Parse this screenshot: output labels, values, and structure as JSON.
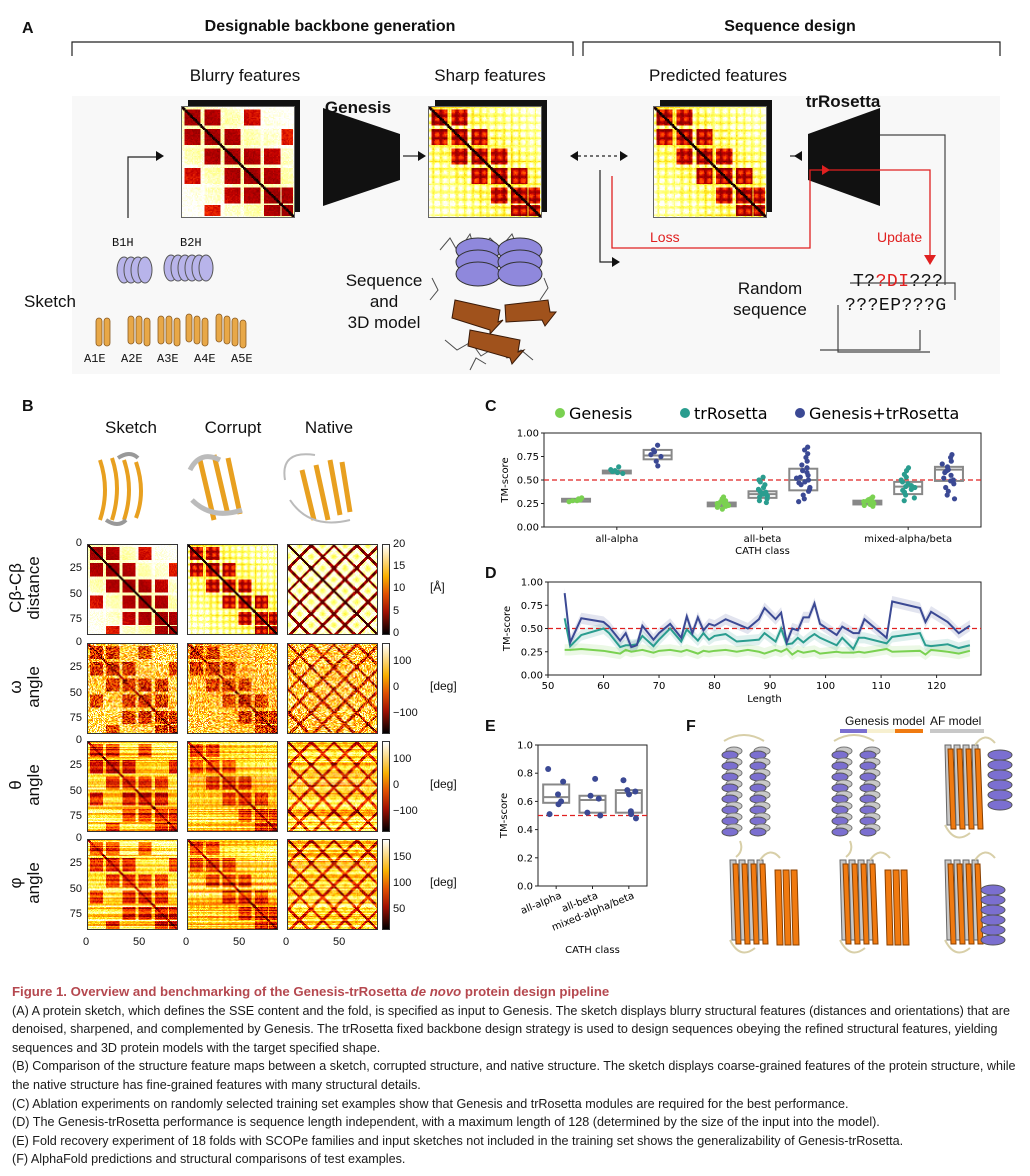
{
  "panel_a": {
    "label": "A",
    "section_left": "Designable backbone generation",
    "section_right": "Sequence design",
    "blurry": "Blurry features",
    "sharp": "Sharp features",
    "predicted": "Predicted features",
    "genesis": "Genesis",
    "trrosetta": "trRosetta",
    "sketch": "Sketch",
    "sketch_tags_top": [
      "B1H",
      "B2H"
    ],
    "sketch_tags_bottom": [
      "A1E",
      "A2E",
      "A3E",
      "A4E",
      "A5E"
    ],
    "model_label": [
      "Sequence",
      "and",
      "3D model"
    ],
    "loss": "Loss",
    "update": "Update",
    "random_seq_label": [
      "Random",
      "sequence"
    ],
    "seq_line1": [
      {
        "t": "T?",
        "c": "#111111"
      },
      {
        "t": "?DI",
        "c": "#e02020"
      },
      {
        "t": "???",
        "c": "#111111"
      }
    ],
    "seq_line2": "???EP???G",
    "accent_red": "#e02020"
  },
  "panel_b": {
    "label": "B",
    "columns": [
      "Sketch",
      "Corrupt",
      "Native"
    ],
    "rows": [
      {
        "label1": "Cβ-Cβ",
        "label2": "distance",
        "unit": "[Å]",
        "cbar_ticks": [
          "20",
          "15",
          "10",
          "5",
          "0"
        ]
      },
      {
        "label1": "ω",
        "label2": "angle",
        "unit": "[deg]",
        "cbar_ticks": [
          "100",
          "0",
          "−100"
        ]
      },
      {
        "label1": "θ",
        "label2": "angle",
        "unit": "[deg]",
        "cbar_ticks": [
          "100",
          "0",
          "−100"
        ]
      },
      {
        "label1": "φ",
        "label2": "angle",
        "unit": "[deg]",
        "cbar_ticks": [
          "150",
          "100",
          "50"
        ]
      }
    ],
    "y_ticks": [
      "0",
      "25",
      "50",
      "75"
    ],
    "x_ticks": [
      "0",
      "50"
    ],
    "colormap": "afmhot"
  },
  "chart_data": [
    {
      "panel": "C",
      "type": "box+strip",
      "xlabel": "CATH class",
      "ylabel": "TM-score",
      "ylim": [
        0,
        1
      ],
      "y_ticks": [
        "0.00",
        "0.25",
        "0.50",
        "0.75",
        "1.00"
      ],
      "threshold": 0.5,
      "legend_placement": "top",
      "categories": [
        "all-alpha",
        "all-beta",
        "mixed-alpha/beta"
      ],
      "series": [
        {
          "name": "Genesis",
          "color": "#7ad151",
          "boxes": [
            {
              "q1": 0.27,
              "median": 0.29,
              "q3": 0.3
            },
            {
              "q1": 0.22,
              "median": 0.24,
              "q3": 0.26
            },
            {
              "q1": 0.24,
              "median": 0.26,
              "q3": 0.28
            }
          ],
          "points": [
            [
              0.27,
              0.28,
              0.29,
              0.3,
              0.31,
              0.28
            ],
            [
              0.19,
              0.21,
              0.22,
              0.23,
              0.24,
              0.25,
              0.26,
              0.27,
              0.28,
              0.3,
              0.32,
              0.23,
              0.25,
              0.24
            ],
            [
              0.22,
              0.23,
              0.24,
              0.25,
              0.26,
              0.27,
              0.28,
              0.29,
              0.3,
              0.32,
              0.25,
              0.27
            ]
          ]
        },
        {
          "name": "trRosetta",
          "color": "#2a9d8f",
          "boxes": [
            {
              "q1": 0.57,
              "median": 0.58,
              "q3": 0.6
            },
            {
              "q1": 0.31,
              "median": 0.35,
              "q3": 0.38
            },
            {
              "q1": 0.35,
              "median": 0.43,
              "q3": 0.48
            }
          ],
          "points": [
            [
              0.57,
              0.58,
              0.59,
              0.6,
              0.61,
              0.64
            ],
            [
              0.26,
              0.28,
              0.3,
              0.32,
              0.34,
              0.35,
              0.36,
              0.38,
              0.4,
              0.42,
              0.45,
              0.48,
              0.5,
              0.53,
              0.33,
              0.37
            ],
            [
              0.28,
              0.31,
              0.34,
              0.37,
              0.4,
              0.42,
              0.44,
              0.46,
              0.48,
              0.5,
              0.53,
              0.56,
              0.6,
              0.63,
              0.43,
              0.39
            ]
          ]
        },
        {
          "name": "Genesis+trRosetta",
          "color": "#3b4994",
          "boxes": [
            {
              "q1": 0.72,
              "median": 0.76,
              "q3": 0.82
            },
            {
              "q1": 0.39,
              "median": 0.5,
              "q3": 0.62
            },
            {
              "q1": 0.49,
              "median": 0.61,
              "q3": 0.64
            }
          ],
          "points": [
            [
              0.65,
              0.7,
              0.75,
              0.77,
              0.8,
              0.82,
              0.87
            ],
            [
              0.27,
              0.3,
              0.34,
              0.38,
              0.42,
              0.45,
              0.48,
              0.5,
              0.52,
              0.55,
              0.58,
              0.6,
              0.63,
              0.66,
              0.7,
              0.74,
              0.78,
              0.82,
              0.85,
              0.47,
              0.53,
              0.4
            ],
            [
              0.3,
              0.34,
              0.38,
              0.42,
              0.46,
              0.49,
              0.52,
              0.55,
              0.58,
              0.61,
              0.64,
              0.67,
              0.7,
              0.74,
              0.77,
              0.6,
              0.5
            ]
          ]
        }
      ]
    },
    {
      "panel": "D",
      "type": "line",
      "xlabel": "Length",
      "ylabel": "TM-score",
      "xlim": [
        50,
        128
      ],
      "ylim": [
        0,
        1
      ],
      "x_ticks": [
        "50",
        "60",
        "70",
        "80",
        "90",
        "100",
        "110",
        "120"
      ],
      "y_ticks": [
        "0.00",
        "0.25",
        "0.50",
        "0.75",
        "1.00"
      ],
      "threshold": 0.5,
      "x": [
        53,
        54,
        56,
        60,
        61,
        63,
        64,
        65,
        66,
        67,
        69,
        70,
        72,
        74,
        75,
        76,
        77,
        78,
        79,
        80,
        82,
        84,
        86,
        88,
        89,
        91,
        92,
        93,
        94,
        95,
        96,
        97,
        98,
        99,
        102,
        103,
        105,
        106,
        107,
        111,
        112,
        117,
        118,
        119,
        122,
        124,
        126
      ],
      "series": [
        {
          "name": "Genesis+trRosetta",
          "color": "#3b4994",
          "values": [
            0.88,
            0.35,
            0.61,
            0.57,
            0.52,
            0.37,
            0.45,
            0.3,
            0.32,
            0.53,
            0.38,
            0.45,
            0.55,
            0.4,
            0.63,
            0.45,
            0.62,
            0.48,
            0.55,
            0.53,
            0.6,
            0.55,
            0.5,
            0.6,
            0.72,
            0.6,
            0.67,
            0.35,
            0.5,
            0.48,
            0.62,
            0.62,
            0.77,
            0.55,
            0.43,
            0.52,
            0.45,
            0.45,
            0.6,
            0.4,
            0.79,
            0.72,
            0.57,
            0.68,
            0.57,
            0.45,
            0.53
          ]
        },
        {
          "name": "trRosetta",
          "color": "#2a9d8f",
          "values": [
            0.61,
            0.31,
            0.43,
            0.5,
            0.45,
            0.3,
            0.32,
            0.32,
            0.33,
            0.42,
            0.31,
            0.38,
            0.5,
            0.36,
            0.49,
            0.43,
            0.37,
            0.45,
            0.38,
            0.42,
            0.44,
            0.36,
            0.37,
            0.38,
            0.45,
            0.36,
            0.5,
            0.33,
            0.34,
            0.4,
            0.35,
            0.4,
            0.44,
            0.4,
            0.32,
            0.4,
            0.28,
            0.4,
            0.4,
            0.34,
            0.41,
            0.45,
            0.32,
            0.31,
            0.33,
            0.29,
            0.32
          ]
        },
        {
          "name": "Genesis",
          "color": "#7ad151",
          "values": [
            0.27,
            0.27,
            0.28,
            0.26,
            0.25,
            0.23,
            0.27,
            0.25,
            0.26,
            0.27,
            0.24,
            0.26,
            0.27,
            0.25,
            0.27,
            0.25,
            0.23,
            0.26,
            0.25,
            0.26,
            0.27,
            0.25,
            0.27,
            0.25,
            0.23,
            0.27,
            0.25,
            0.28,
            0.22,
            0.26,
            0.24,
            0.25,
            0.26,
            0.23,
            0.25,
            0.24,
            0.24,
            0.25,
            0.24,
            0.28,
            0.25,
            0.26,
            0.22,
            0.27,
            0.25,
            0.23,
            0.26
          ]
        }
      ]
    },
    {
      "panel": "E",
      "type": "box+strip",
      "xlabel": "CATH class",
      "ylabel": "TM-score",
      "ylim": [
        0,
        1
      ],
      "y_ticks": [
        "0.0",
        "0.2",
        "0.4",
        "0.6",
        "0.8",
        "1.0"
      ],
      "threshold": 0.5,
      "categories": [
        "all-alpha",
        "all-beta",
        "mixed-alpha/beta"
      ],
      "color": "#3b4994",
      "boxes": [
        {
          "q1": 0.59,
          "median": 0.63,
          "q3": 0.72
        },
        {
          "q1": 0.52,
          "median": 0.61,
          "q3": 0.64
        },
        {
          "q1": 0.52,
          "median": 0.66,
          "q3": 0.68
        }
      ],
      "points": [
        [
          0.83,
          0.74,
          0.65,
          0.6,
          0.58,
          0.51
        ],
        [
          0.76,
          0.64,
          0.62,
          0.52,
          0.5
        ],
        [
          0.75,
          0.68,
          0.67,
          0.65,
          0.53,
          0.51,
          0.48
        ]
      ]
    }
  ],
  "panel_c": {
    "label": "C"
  },
  "panel_d": {
    "label": "D"
  },
  "panel_e": {
    "label": "E"
  },
  "panel_f": {
    "label": "F",
    "legend_genesis": "Genesis model",
    "legend_af": "AF model",
    "genesis_colors": [
      "#7b6fd0",
      "#f7f0d0",
      "#f07a10"
    ],
    "af_color": "#c8c8c8"
  },
  "caption": {
    "title_pre": "Figure 1.  Overview and benchmarking of the Genesis-trRosetta ",
    "title_italic": "de novo",
    "title_post": " protein design pipeline",
    "paragraphs": [
      "(A) A protein sketch, which defines the SSE content and the fold, is specified as input to Genesis. The sketch displays blurry structural features (distances and orientations) that are denoised, sharpened, and complemented by Genesis. The trRosetta fixed backbone design strategy is used to design sequences obeying the refined structural features, yielding sequences and 3D protein models with the target specified shape.",
      "(B) Comparison of the structure feature maps between a sketch, corrupted structure, and native structure. The sketch displays coarse-grained features of the protein structure, while the native structure has fine-grained features with many structural details.",
      "(C) Ablation experiments on randomly selected training set examples show that Genesis and trRosetta modules are required for the best performance.",
      "(D) The Genesis-trRosetta performance is sequence length independent, with a maximum length of 128 (determined by the size of the input into the model).",
      "(E) Fold recovery experiment of 18 folds with SCOPe families and input sketches not included in the training set shows the generalizability of Genesis-trRosetta.",
      "(F) AlphaFold predictions and structural comparisons of test examples."
    ]
  }
}
